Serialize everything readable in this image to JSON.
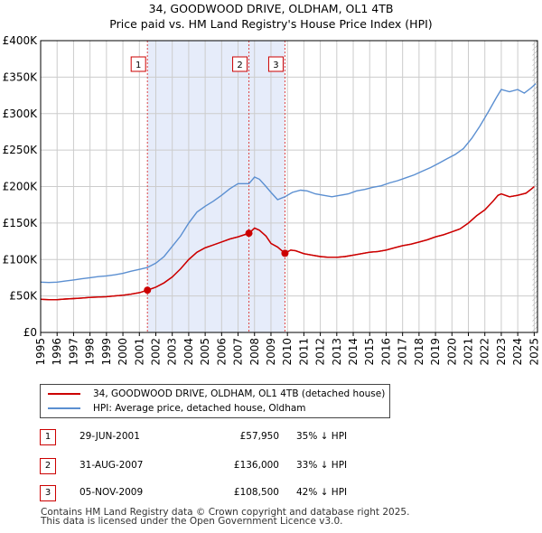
{
  "header": {
    "title": "34, GOODWOOD DRIVE, OLDHAM, OL1 4TB",
    "subtitle": "Price paid vs. HM Land Registry's House Price Index (HPI)"
  },
  "colors": {
    "property": "#cc0000",
    "hpi": "#5b8fd1",
    "shade": "#e6ecfa",
    "grid": "#cccccc",
    "vline": "#dd4444",
    "marker_border": "#cc0000"
  },
  "legend": {
    "property_label": "34, GOODWOOD DRIVE, OLDHAM, OL1 4TB (detached house)",
    "hpi_label": "HPI: Average price, detached house, Oldham"
  },
  "transactions": [
    {
      "num": "1",
      "date": "29-JUN-2001",
      "price": "£57,950",
      "hpi_diff": "35% ↓ HPI",
      "t": 2001.49,
      "value": 57950
    },
    {
      "num": "2",
      "date": "31-AUG-2007",
      "price": "£136,000",
      "hpi_diff": "33% ↓ HPI",
      "t": 2007.66,
      "value": 136000
    },
    {
      "num": "3",
      "date": "05-NOV-2009",
      "price": "£108,500",
      "hpi_diff": "42% ↓ HPI",
      "t": 2009.85,
      "value": 108500
    }
  ],
  "footer": {
    "line1": "Contains HM Land Registry data © Crown copyright and database right 2025.",
    "line2": "This data is licensed under the Open Government Licence v3.0."
  },
  "chart_data": {
    "type": "line",
    "title": "34, GOODWOOD DRIVE, OLDHAM, OL1 4TB",
    "subtitle": "Price paid vs. HM Land Registry's House Price Index (HPI)",
    "xlabel": "",
    "ylabel": "",
    "xlim": [
      1995,
      2025.2
    ],
    "ylim": [
      0,
      400000
    ],
    "x_ticks": [
      "1995",
      "1996",
      "1997",
      "1998",
      "1999",
      "2000",
      "2001",
      "2002",
      "2003",
      "2004",
      "2005",
      "2006",
      "2007",
      "2008",
      "2009",
      "2010",
      "2011",
      "2012",
      "2013",
      "2014",
      "2015",
      "2016",
      "2017",
      "2018",
      "2019",
      "2020",
      "2021",
      "2022",
      "2023",
      "2024",
      "2025"
    ],
    "y_ticks": [
      {
        "value": 0,
        "label": "£0"
      },
      {
        "value": 50000,
        "label": "£50K"
      },
      {
        "value": 100000,
        "label": "£100K"
      },
      {
        "value": 150000,
        "label": "£150K"
      },
      {
        "value": 200000,
        "label": "£200K"
      },
      {
        "value": 250000,
        "label": "£250K"
      },
      {
        "value": 300000,
        "label": "£300K"
      },
      {
        "value": 350000,
        "label": "£350K"
      },
      {
        "value": 400000,
        "label": "£400K"
      }
    ],
    "grid": true,
    "shaded_range": [
      2001.49,
      2009.85
    ],
    "future_hatch_from": 2024.9,
    "series": [
      {
        "name": "34, GOODWOOD DRIVE, OLDHAM, OL1 4TB (detached house)",
        "color": "#cc0000",
        "points": [
          [
            1995.0,
            45500
          ],
          [
            1995.5,
            45000
          ],
          [
            1996.0,
            45000
          ],
          [
            1996.5,
            45800
          ],
          [
            1997.0,
            46500
          ],
          [
            1997.5,
            47200
          ],
          [
            1998.0,
            48000
          ],
          [
            1998.5,
            48500
          ],
          [
            1999.0,
            49000
          ],
          [
            1999.5,
            50000
          ],
          [
            2000.0,
            51000
          ],
          [
            2000.5,
            52500
          ],
          [
            2001.0,
            54500
          ],
          [
            2001.49,
            57950
          ],
          [
            2002.0,
            62000
          ],
          [
            2002.5,
            68000
          ],
          [
            2003.0,
            76000
          ],
          [
            2003.5,
            87000
          ],
          [
            2004.0,
            100000
          ],
          [
            2004.5,
            110000
          ],
          [
            2005.0,
            116000
          ],
          [
            2005.5,
            120000
          ],
          [
            2006.0,
            124000
          ],
          [
            2006.5,
            128000
          ],
          [
            2007.0,
            131000
          ],
          [
            2007.66,
            136000
          ],
          [
            2008.0,
            143000
          ],
          [
            2008.3,
            140000
          ],
          [
            2008.7,
            132000
          ],
          [
            2009.0,
            122000
          ],
          [
            2009.4,
            117000
          ],
          [
            2009.85,
            108500
          ],
          [
            2010.2,
            113000
          ],
          [
            2010.5,
            112000
          ],
          [
            2011.0,
            108000
          ],
          [
            2011.5,
            106000
          ],
          [
            2012.0,
            104000
          ],
          [
            2012.5,
            103000
          ],
          [
            2013.0,
            103000
          ],
          [
            2013.5,
            104000
          ],
          [
            2014.0,
            106000
          ],
          [
            2014.5,
            108000
          ],
          [
            2015.0,
            110000
          ],
          [
            2015.5,
            111000
          ],
          [
            2016.0,
            113000
          ],
          [
            2016.5,
            116000
          ],
          [
            2017.0,
            119000
          ],
          [
            2017.5,
            121000
          ],
          [
            2018.0,
            124000
          ],
          [
            2018.5,
            127000
          ],
          [
            2019.0,
            131000
          ],
          [
            2019.5,
            134000
          ],
          [
            2020.0,
            138000
          ],
          [
            2020.5,
            142000
          ],
          [
            2021.0,
            150000
          ],
          [
            2021.5,
            160000
          ],
          [
            2022.0,
            168000
          ],
          [
            2022.5,
            180000
          ],
          [
            2022.8,
            188000
          ],
          [
            2023.0,
            190000
          ],
          [
            2023.5,
            186000
          ],
          [
            2024.0,
            188000
          ],
          [
            2024.5,
            191000
          ],
          [
            2024.85,
            197000
          ],
          [
            2025.0,
            200000
          ]
        ]
      },
      {
        "name": "HPI: Average price, detached house, Oldham",
        "color": "#5b8fd1",
        "points": [
          [
            1995.0,
            69000
          ],
          [
            1995.5,
            68500
          ],
          [
            1996.0,
            69000
          ],
          [
            1996.5,
            70500
          ],
          [
            1997.0,
            72000
          ],
          [
            1997.5,
            73500
          ],
          [
            1998.0,
            75000
          ],
          [
            1998.5,
            76500
          ],
          [
            1999.0,
            77500
          ],
          [
            1999.5,
            79000
          ],
          [
            2000.0,
            81000
          ],
          [
            2000.5,
            84000
          ],
          [
            2001.0,
            86500
          ],
          [
            2001.49,
            89000
          ],
          [
            2002.0,
            95000
          ],
          [
            2002.5,
            104000
          ],
          [
            2003.0,
            118000
          ],
          [
            2003.5,
            132000
          ],
          [
            2004.0,
            150000
          ],
          [
            2004.5,
            165000
          ],
          [
            2005.0,
            173000
          ],
          [
            2005.5,
            180000
          ],
          [
            2006.0,
            188000
          ],
          [
            2006.5,
            197000
          ],
          [
            2007.0,
            204000
          ],
          [
            2007.66,
            204000
          ],
          [
            2008.0,
            213000
          ],
          [
            2008.3,
            210000
          ],
          [
            2008.7,
            200000
          ],
          [
            2009.0,
            192000
          ],
          [
            2009.4,
            182000
          ],
          [
            2009.85,
            186000
          ],
          [
            2010.3,
            192000
          ],
          [
            2010.8,
            195000
          ],
          [
            2011.2,
            194000
          ],
          [
            2011.7,
            190000
          ],
          [
            2012.2,
            188000
          ],
          [
            2012.7,
            186000
          ],
          [
            2013.2,
            188000
          ],
          [
            2013.7,
            190000
          ],
          [
            2014.2,
            194000
          ],
          [
            2014.7,
            196000
          ],
          [
            2015.2,
            199000
          ],
          [
            2015.7,
            201000
          ],
          [
            2016.2,
            205000
          ],
          [
            2016.7,
            208000
          ],
          [
            2017.2,
            212000
          ],
          [
            2017.7,
            216000
          ],
          [
            2018.2,
            221000
          ],
          [
            2018.7,
            226000
          ],
          [
            2019.2,
            232000
          ],
          [
            2019.7,
            238000
          ],
          [
            2020.2,
            244000
          ],
          [
            2020.7,
            252000
          ],
          [
            2021.2,
            266000
          ],
          [
            2021.7,
            283000
          ],
          [
            2022.2,
            302000
          ],
          [
            2022.7,
            322000
          ],
          [
            2023.0,
            333000
          ],
          [
            2023.5,
            330000
          ],
          [
            2024.0,
            333000
          ],
          [
            2024.4,
            328000
          ],
          [
            2024.8,
            335000
          ],
          [
            2025.1,
            341000
          ]
        ]
      }
    ],
    "markers": [
      {
        "label": "1",
        "x": 2001.49,
        "y": 57950
      },
      {
        "label": "2",
        "x": 2007.66,
        "y": 136000
      },
      {
        "label": "3",
        "x": 2009.85,
        "y": 108500
      }
    ]
  }
}
